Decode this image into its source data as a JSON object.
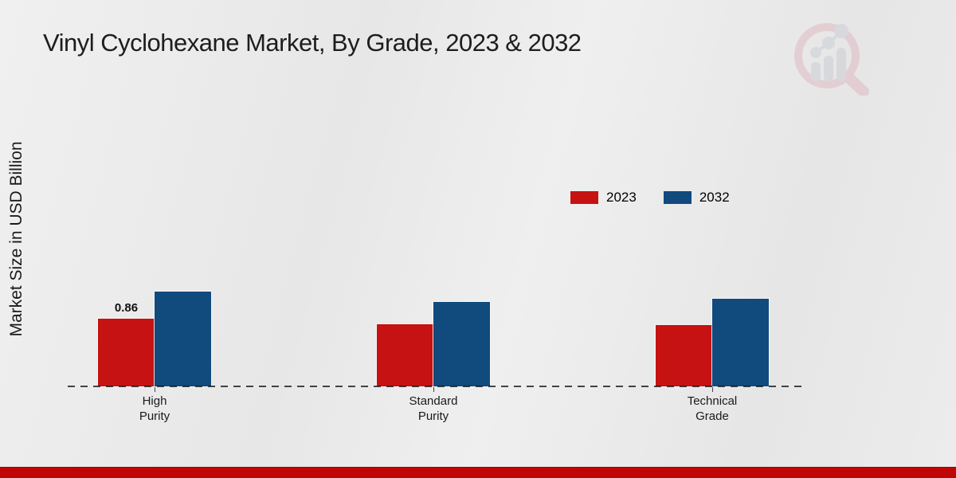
{
  "page": {
    "title": "Vinyl Cyclohexane Market, By Grade, 2023 & 2032",
    "ylabel": "Market Size in USD Billion",
    "footer_color": "#c00505",
    "logo": "magnifier-bar-chart-watermark"
  },
  "chart_data": {
    "type": "bar",
    "title": "Vinyl Cyclohexane Market, By Grade, 2023 & 2032",
    "xlabel": "",
    "ylabel": "Market Size in USD Billion",
    "categories": [
      "High Purity",
      "Standard Purity",
      "Technical Grade"
    ],
    "category_label_lines": [
      [
        "High",
        "Purity"
      ],
      [
        "Standard",
        "Purity"
      ],
      [
        "Technical",
        "Grade"
      ]
    ],
    "series": [
      {
        "name": "2023",
        "color": "#c61212",
        "values": [
          0.86,
          0.79,
          0.78
        ]
      },
      {
        "name": "2032",
        "color": "#114a7d",
        "values": [
          1.2,
          1.07,
          1.11
        ]
      }
    ],
    "bar_labels": [
      {
        "series_index": 0,
        "category_index": 0,
        "text": "0.86"
      }
    ],
    "ylim": [
      0,
      1.4
    ],
    "grid": false,
    "axis_style": "dashed-baseline-only",
    "legend_position": "upper-right-of-plot"
  }
}
